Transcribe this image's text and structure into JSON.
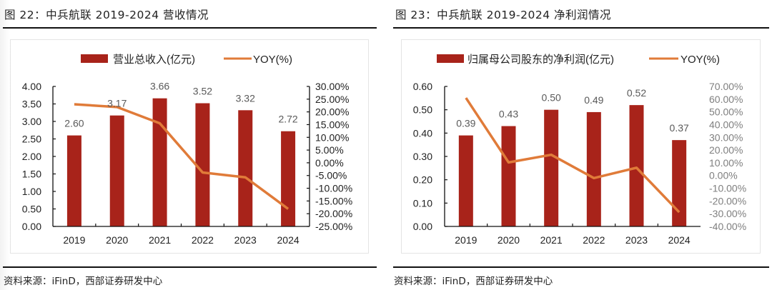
{
  "figures": [
    {
      "title": "图 22：中兵航联 2019-2024 营收情况",
      "source": "资料来源：iFinD，西部证券研发中心"
    },
    {
      "title": "图 23：中兵航联 2019-2024 净利润情况",
      "source": "资料来源：iFinD，西部证券研发中心"
    }
  ],
  "colors": {
    "bar": "#a8231a",
    "line": "#e07b39",
    "axis": "#111111",
    "label": "#595959",
    "right_tick_chart2": "#7f7f7f"
  },
  "chart_data": [
    {
      "type": "bar+line",
      "title": "中兵航联 2019-2024 营收情况",
      "categories": [
        "2019",
        "2020",
        "2021",
        "2022",
        "2023",
        "2024"
      ],
      "series": [
        {
          "name": "营业总收入(亿元)",
          "type": "bar",
          "axis": "left",
          "values": [
            2.6,
            3.17,
            3.66,
            3.52,
            3.32,
            2.72
          ],
          "labels": [
            "2.60",
            "3.17",
            "3.66",
            "3.52",
            "3.32",
            "2.72"
          ]
        },
        {
          "name": "YOY(%)",
          "type": "line",
          "axis": "right",
          "values": [
            23.0,
            21.9,
            15.5,
            -3.8,
            -5.7,
            -18.1
          ]
        }
      ],
      "left_axis": {
        "min": 0,
        "max": 4,
        "ticks": [
          "0.00",
          "0.50",
          "1.00",
          "1.50",
          "2.00",
          "2.50",
          "3.00",
          "3.50",
          "4.00"
        ]
      },
      "right_axis": {
        "min": -25,
        "max": 30,
        "ticks": [
          "-25.00%",
          "-20.00%",
          "-15.00%",
          "-10.00%",
          "-5.00%",
          "0.00%",
          "5.00%",
          "10.00%",
          "15.00%",
          "20.00%",
          "25.00%",
          "30.00%"
        ],
        "axis_line": true
      },
      "legend": "top",
      "grid": false
    },
    {
      "type": "bar+line",
      "title": "中兵航联 2019-2024 净利润情况",
      "categories": [
        "2019",
        "2020",
        "2021",
        "2022",
        "2023",
        "2024"
      ],
      "series": [
        {
          "name": "归属母公司股东的净利润(亿元)",
          "type": "bar",
          "axis": "left",
          "values": [
            0.39,
            0.43,
            0.5,
            0.49,
            0.52,
            0.37
          ],
          "labels": [
            "0.39",
            "0.43",
            "0.50",
            "0.49",
            "0.52",
            "0.37"
          ]
        },
        {
          "name": "YOY(%)",
          "type": "line",
          "axis": "right",
          "values": [
            61.0,
            10.3,
            16.3,
            -2.0,
            6.1,
            -28.8
          ]
        }
      ],
      "left_axis": {
        "min": 0,
        "max": 0.6,
        "ticks": [
          "0.00",
          "0.10",
          "0.20",
          "0.30",
          "0.40",
          "0.50",
          "0.60"
        ]
      },
      "right_axis": {
        "min": -40,
        "max": 70,
        "ticks": [
          "-40.00%",
          "-30.00%",
          "-20.00%",
          "-10.00%",
          "0.00%",
          "10.00%",
          "20.00%",
          "30.00%",
          "40.00%",
          "50.00%",
          "60.00%",
          "70.00%"
        ],
        "axis_line": false
      },
      "legend": "top",
      "grid": false
    }
  ]
}
